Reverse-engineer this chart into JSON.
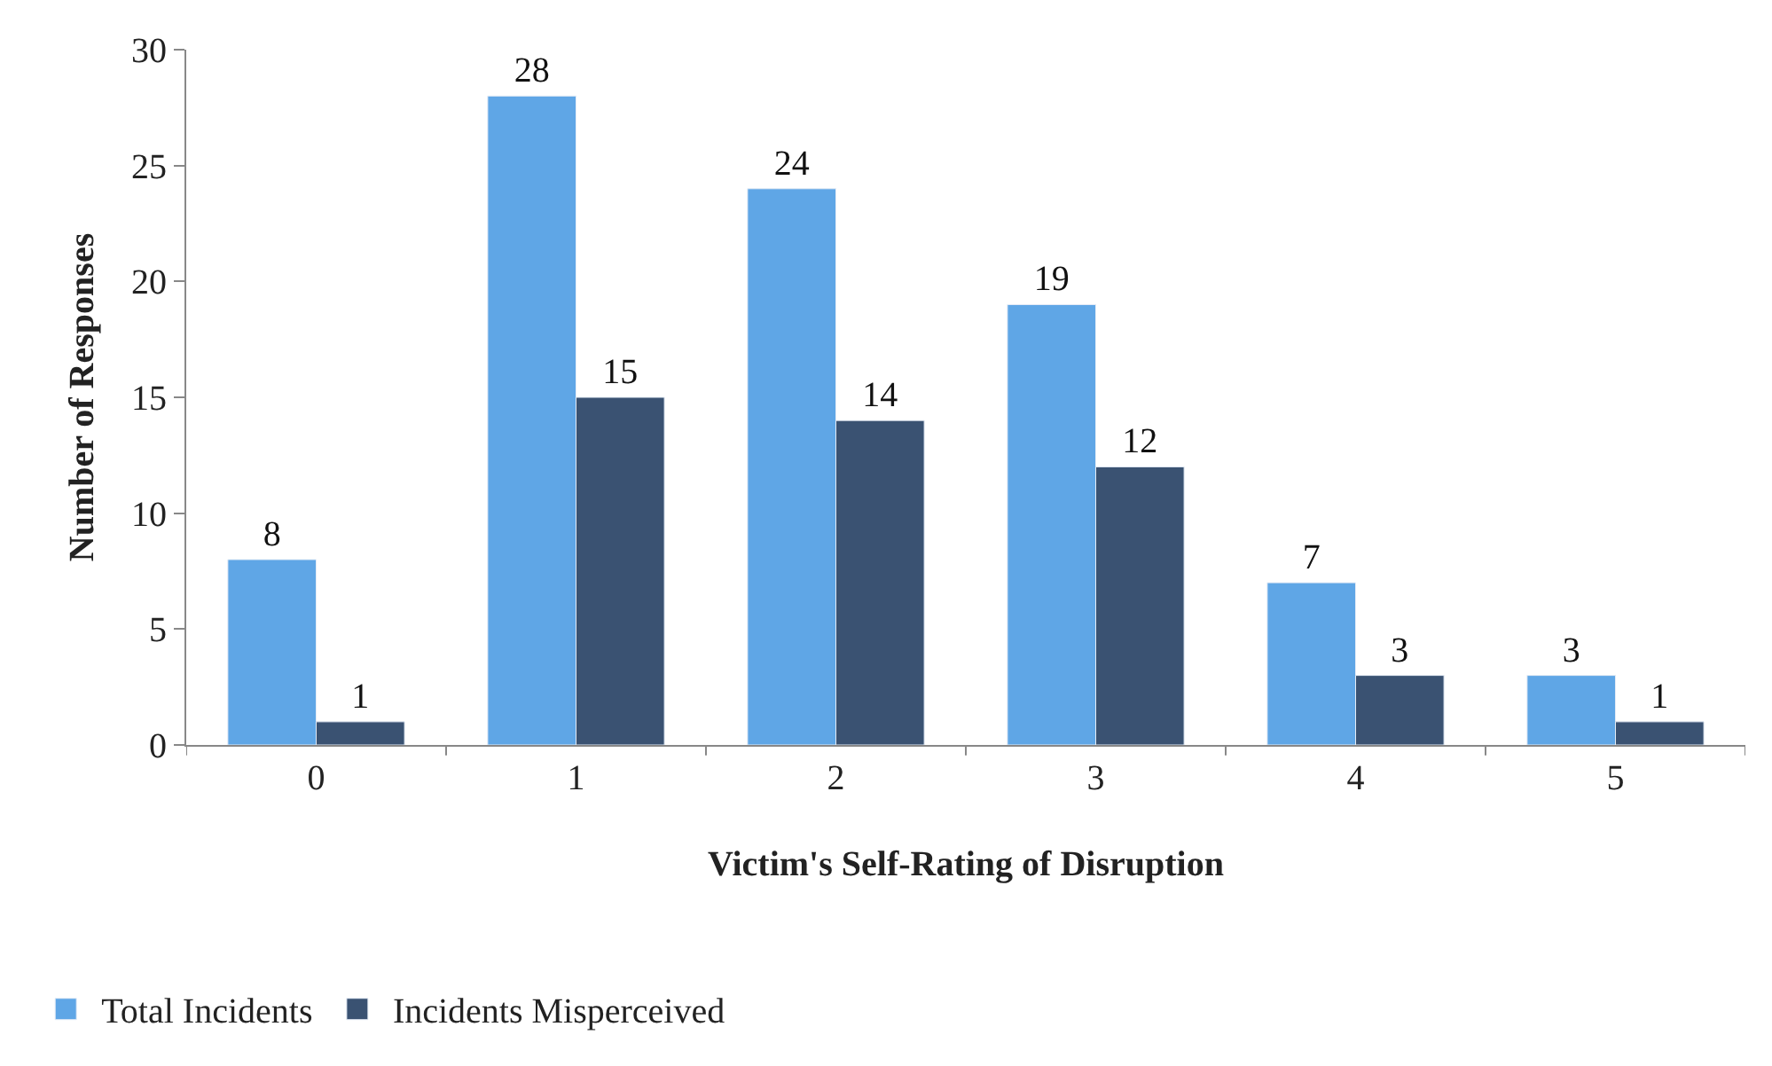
{
  "chart_data": {
    "type": "bar",
    "xlabel": "Victim's Self-Rating of Disruption",
    "ylabel": "Number of Responses",
    "categories": [
      "0",
      "1",
      "2",
      "3",
      "4",
      "5"
    ],
    "series": [
      {
        "name": "Total Incidents",
        "color": "#5fa6e6",
        "values": [
          8,
          28,
          24,
          19,
          7,
          3
        ]
      },
      {
        "name": "Incidents Misperceived",
        "color": "#3a5272",
        "values": [
          1,
          15,
          14,
          12,
          3,
          1
        ]
      }
    ],
    "ylim": [
      0,
      30
    ],
    "yticks": [
      0,
      5,
      10,
      15,
      20,
      25,
      30
    ],
    "data_labels": true,
    "legend": "bottom left"
  }
}
